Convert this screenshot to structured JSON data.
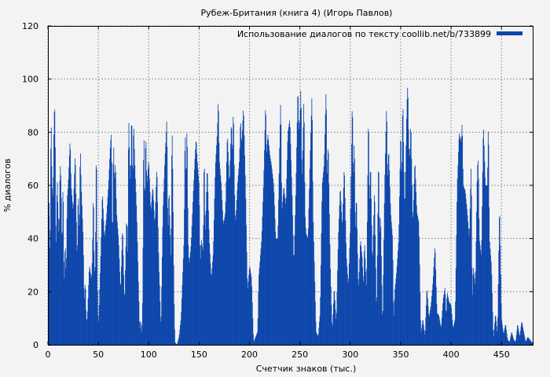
{
  "chart_data": {
    "type": "bar",
    "title": "Рубеж-Британия  (книга 4) (Игорь Павлов)",
    "xlabel": "Счетчик знаков (тыс.)",
    "ylabel": "% диалогов",
    "xlim": [
      0,
      481
    ],
    "ylim": [
      0,
      120
    ],
    "xticks": [
      0,
      50,
      100,
      150,
      200,
      250,
      300,
      350,
      400,
      450
    ],
    "yticks": [
      0,
      20,
      40,
      60,
      80,
      100,
      120
    ],
    "grid": true,
    "legend_position": "top-right",
    "series": [
      {
        "name": "Использование диалогов по тексту coollib.net/b/733899",
        "color": "#0a44aa",
        "anchors": [
          [
            0,
            8
          ],
          [
            1,
            62
          ],
          [
            2,
            28
          ],
          [
            3,
            89
          ],
          [
            4,
            60
          ],
          [
            5,
            55
          ],
          [
            6,
            87
          ],
          [
            7,
            89
          ],
          [
            8,
            30
          ],
          [
            9,
            65
          ],
          [
            10,
            50
          ],
          [
            11,
            40
          ],
          [
            12,
            69
          ],
          [
            13,
            62
          ],
          [
            14,
            35
          ],
          [
            15,
            65
          ],
          [
            16,
            20
          ],
          [
            17,
            40
          ],
          [
            18,
            25
          ],
          [
            19,
            55
          ],
          [
            20,
            60
          ],
          [
            22,
            78
          ],
          [
            23,
            60
          ],
          [
            25,
            50
          ],
          [
            27,
            73
          ],
          [
            29,
            30
          ],
          [
            30,
            60
          ],
          [
            31,
            40
          ],
          [
            32,
            76
          ],
          [
            33,
            60
          ],
          [
            35,
            40
          ],
          [
            36,
            15
          ],
          [
            37,
            25
          ],
          [
            38,
            9
          ],
          [
            39,
            10
          ],
          [
            40,
            20
          ],
          [
            41,
            30
          ],
          [
            42,
            28
          ],
          [
            43,
            24
          ],
          [
            44,
            33
          ],
          [
            45,
            60
          ],
          [
            46,
            27
          ],
          [
            47,
            30
          ],
          [
            48,
            80
          ],
          [
            49,
            25
          ],
          [
            50,
            6
          ],
          [
            52,
            30
          ],
          [
            54,
            58
          ],
          [
            56,
            40
          ],
          [
            58,
            48
          ],
          [
            60,
            60
          ],
          [
            62,
            76
          ],
          [
            63,
            80
          ],
          [
            64,
            35
          ],
          [
            65,
            79
          ],
          [
            66,
            60
          ],
          [
            67,
            70
          ],
          [
            68,
            50
          ],
          [
            70,
            40
          ],
          [
            72,
            20
          ],
          [
            74,
            45
          ],
          [
            76,
            15
          ],
          [
            78,
            50
          ],
          [
            79,
            30
          ],
          [
            80,
            88
          ],
          [
            81,
            70
          ],
          [
            82,
            60
          ],
          [
            83,
            90
          ],
          [
            84,
            60
          ],
          [
            85,
            85
          ],
          [
            86,
            70
          ],
          [
            88,
            50
          ],
          [
            90,
            20
          ],
          [
            91,
            5
          ],
          [
            92,
            10
          ],
          [
            93,
            3
          ],
          [
            94,
            20
          ],
          [
            95,
            86
          ],
          [
            96,
            50
          ],
          [
            97,
            82
          ],
          [
            98,
            60
          ],
          [
            100,
            70
          ],
          [
            102,
            50
          ],
          [
            104,
            60
          ],
          [
            106,
            45
          ],
          [
            108,
            68
          ],
          [
            110,
            30
          ],
          [
            111,
            20
          ],
          [
            112,
            5
          ],
          [
            114,
            50
          ],
          [
            116,
            70
          ],
          [
            118,
            86
          ],
          [
            119,
            40
          ],
          [
            120,
            60
          ],
          [
            122,
            30
          ],
          [
            123,
            85
          ],
          [
            124,
            60
          ],
          [
            125,
            20
          ],
          [
            126,
            1
          ],
          [
            128,
            0
          ],
          [
            130,
            3
          ],
          [
            132,
            10
          ],
          [
            134,
            30
          ],
          [
            135,
            40
          ],
          [
            136,
            84
          ],
          [
            137,
            60
          ],
          [
            138,
            86
          ],
          [
            139,
            40
          ],
          [
            140,
            30
          ],
          [
            142,
            38
          ],
          [
            144,
            56
          ],
          [
            146,
            72
          ],
          [
            147,
            78
          ],
          [
            148,
            70
          ],
          [
            150,
            60
          ],
          [
            151,
            30
          ],
          [
            152,
            40
          ],
          [
            154,
            35
          ],
          [
            155,
            75
          ],
          [
            156,
            40
          ],
          [
            158,
            68
          ],
          [
            160,
            40
          ],
          [
            162,
            25
          ],
          [
            164,
            35
          ],
          [
            166,
            67
          ],
          [
            168,
            80
          ],
          [
            169,
            94
          ],
          [
            170,
            70
          ],
          [
            172,
            60
          ],
          [
            174,
            45
          ],
          [
            176,
            50
          ],
          [
            178,
            80
          ],
          [
            180,
            60
          ],
          [
            182,
            85
          ],
          [
            183,
            70
          ],
          [
            184,
            91
          ],
          [
            185,
            60
          ],
          [
            186,
            45
          ],
          [
            188,
            60
          ],
          [
            190,
            70
          ],
          [
            191,
            86
          ],
          [
            192,
            75
          ],
          [
            194,
            90
          ],
          [
            196,
            60
          ],
          [
            198,
            20
          ],
          [
            200,
            30
          ],
          [
            202,
            25
          ],
          [
            204,
            1
          ],
          [
            206,
            3
          ],
          [
            208,
            5
          ],
          [
            209,
            25
          ],
          [
            210,
            30
          ],
          [
            212,
            40
          ],
          [
            214,
            62
          ],
          [
            216,
            92
          ],
          [
            217,
            70
          ],
          [
            218,
            80
          ],
          [
            220,
            72
          ],
          [
            222,
            67
          ],
          [
            224,
            60
          ],
          [
            226,
            40
          ],
          [
            228,
            40
          ],
          [
            230,
            79
          ],
          [
            231,
            94
          ],
          [
            232,
            50
          ],
          [
            234,
            60
          ],
          [
            236,
            52
          ],
          [
            238,
            80
          ],
          [
            240,
            85
          ],
          [
            242,
            60
          ],
          [
            244,
            30
          ],
          [
            246,
            60
          ],
          [
            248,
            98
          ],
          [
            249,
            80
          ],
          [
            250,
            85
          ],
          [
            251,
            99
          ],
          [
            252,
            60
          ],
          [
            254,
            95
          ],
          [
            255,
            50
          ],
          [
            256,
            42
          ],
          [
            258,
            40
          ],
          [
            260,
            70
          ],
          [
            262,
            96
          ],
          [
            263,
            50
          ],
          [
            264,
            35
          ],
          [
            266,
            5
          ],
          [
            268,
            3
          ],
          [
            270,
            12
          ],
          [
            272,
            60
          ],
          [
            274,
            68
          ],
          [
            276,
            98
          ],
          [
            277,
            60
          ],
          [
            278,
            78
          ],
          [
            280,
            32
          ],
          [
            282,
            5
          ],
          [
            284,
            22
          ],
          [
            286,
            8
          ],
          [
            288,
            40
          ],
          [
            290,
            60
          ],
          [
            292,
            44
          ],
          [
            294,
            68
          ],
          [
            296,
            34
          ],
          [
            298,
            22
          ],
          [
            300,
            45
          ],
          [
            302,
            94
          ],
          [
            303,
            60
          ],
          [
            304,
            80
          ],
          [
            305,
            40
          ],
          [
            306,
            58
          ],
          [
            308,
            20
          ],
          [
            310,
            40
          ],
          [
            312,
            32
          ],
          [
            313,
            21
          ],
          [
            314,
            40
          ],
          [
            316,
            20
          ],
          [
            318,
            90
          ],
          [
            319,
            50
          ],
          [
            320,
            70
          ],
          [
            322,
            30
          ],
          [
            324,
            60
          ],
          [
            326,
            10
          ],
          [
            328,
            73
          ],
          [
            329,
            40
          ],
          [
            330,
            50
          ],
          [
            332,
            6
          ],
          [
            334,
            60
          ],
          [
            336,
            92
          ],
          [
            337,
            60
          ],
          [
            338,
            75
          ],
          [
            340,
            50
          ],
          [
            342,
            40
          ],
          [
            343,
            8
          ],
          [
            344,
            20
          ],
          [
            346,
            28
          ],
          [
            348,
            40
          ],
          [
            350,
            82
          ],
          [
            351,
            60
          ],
          [
            352,
            95
          ],
          [
            353,
            70
          ],
          [
            354,
            50
          ],
          [
            356,
            90
          ],
          [
            357,
            99
          ],
          [
            358,
            75
          ],
          [
            359,
            70
          ],
          [
            360,
            85
          ],
          [
            362,
            45
          ],
          [
            364,
            70
          ],
          [
            366,
            50
          ],
          [
            368,
            46
          ],
          [
            370,
            4
          ],
          [
            372,
            10
          ],
          [
            374,
            3
          ],
          [
            376,
            22
          ],
          [
            378,
            10
          ],
          [
            380,
            15
          ],
          [
            382,
            24
          ],
          [
            384,
            38
          ],
          [
            386,
            12
          ],
          [
            388,
            11
          ],
          [
            390,
            6
          ],
          [
            392,
            17
          ],
          [
            394,
            22
          ],
          [
            395,
            10
          ],
          [
            396,
            20
          ],
          [
            398,
            16
          ],
          [
            400,
            15
          ],
          [
            402,
            6
          ],
          [
            404,
            10
          ],
          [
            406,
            60
          ],
          [
            408,
            80
          ],
          [
            410,
            76
          ],
          [
            411,
            85
          ],
          [
            412,
            60
          ],
          [
            414,
            58
          ],
          [
            416,
            50
          ],
          [
            418,
            40
          ],
          [
            420,
            70
          ],
          [
            421,
            15
          ],
          [
            422,
            30
          ],
          [
            424,
            22
          ],
          [
            426,
            67
          ],
          [
            427,
            70
          ],
          [
            428,
            40
          ],
          [
            430,
            33
          ],
          [
            432,
            84
          ],
          [
            434,
            60
          ],
          [
            436,
            60
          ],
          [
            437,
            87
          ],
          [
            438,
            40
          ],
          [
            440,
            30
          ],
          [
            442,
            2
          ],
          [
            444,
            12
          ],
          [
            446,
            4
          ],
          [
            448,
            54
          ],
          [
            450,
            10
          ],
          [
            452,
            4
          ],
          [
            454,
            8
          ],
          [
            456,
            2
          ],
          [
            458,
            1
          ],
          [
            460,
            5
          ],
          [
            462,
            2
          ],
          [
            464,
            1
          ],
          [
            466,
            8
          ],
          [
            468,
            3
          ],
          [
            470,
            9
          ],
          [
            472,
            5
          ],
          [
            474,
            1
          ],
          [
            476,
            3
          ],
          [
            478,
            2
          ],
          [
            480,
            1
          ]
        ]
      }
    ]
  }
}
